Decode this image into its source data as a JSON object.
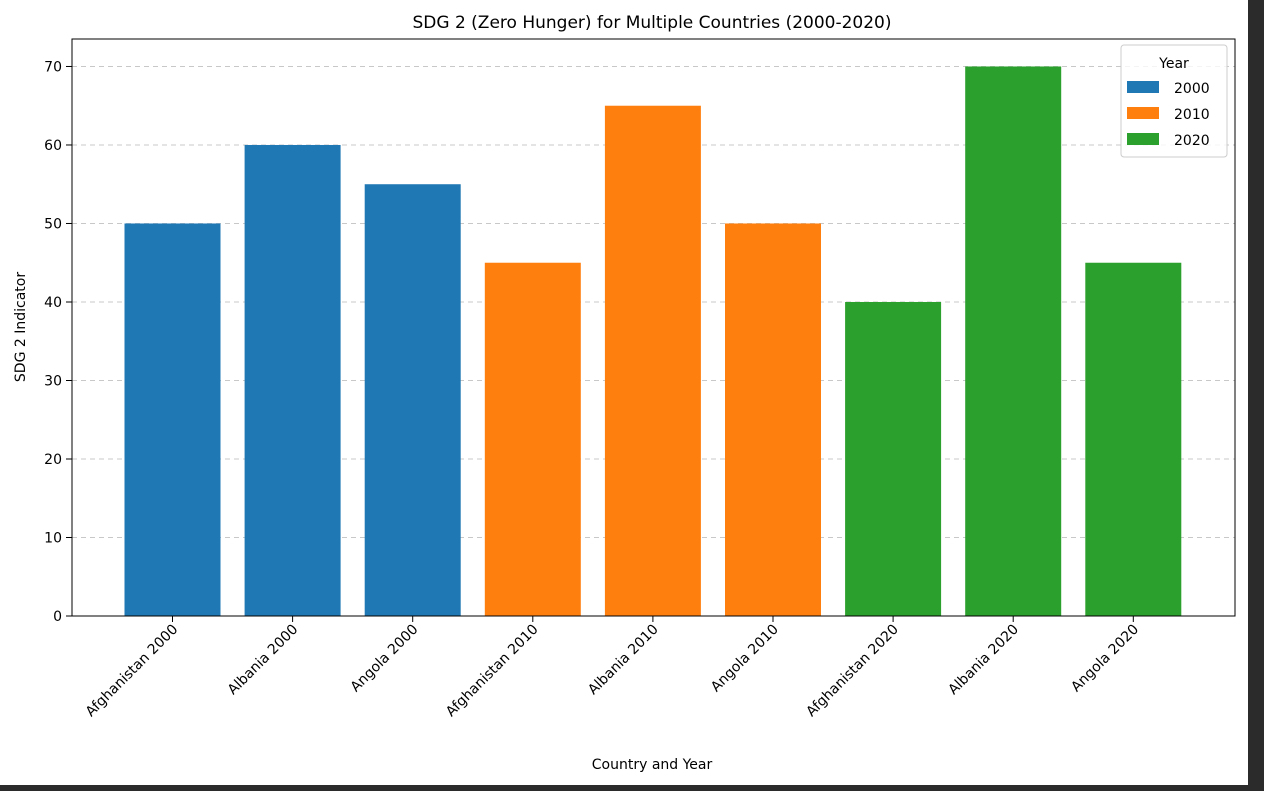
{
  "chart_data": {
    "type": "bar",
    "title": "SDG 2 (Zero Hunger) for Multiple Countries (2000-2020)",
    "xlabel": "Country and Year",
    "ylabel": "SDG 2 Indicator",
    "ylim": [
      0,
      73.5
    ],
    "yticks": [
      0,
      10,
      20,
      30,
      40,
      50,
      60,
      70
    ],
    "grid": "y-dashed",
    "legend_title": "Year",
    "legend_position": "top-right",
    "categories": [
      "Afghanistan 2000",
      "Albania 2000",
      "Angola 2000",
      "Afghanistan 2010",
      "Albania 2010",
      "Angola 2010",
      "Afghanistan 2020",
      "Albania  2020",
      "Angola 2020"
    ],
    "values": [
      50,
      60,
      55,
      45,
      65,
      50,
      40,
      70,
      45
    ],
    "bar_series": [
      "2000",
      "2000",
      "2000",
      "2010",
      "2010",
      "2010",
      "2020",
      "2020",
      "2020"
    ],
    "series": [
      {
        "name": "2000",
        "color": "#1f77b4"
      },
      {
        "name": "2010",
        "color": "#ff7f0e"
      },
      {
        "name": "2020",
        "color": "#2ca02c"
      }
    ]
  }
}
